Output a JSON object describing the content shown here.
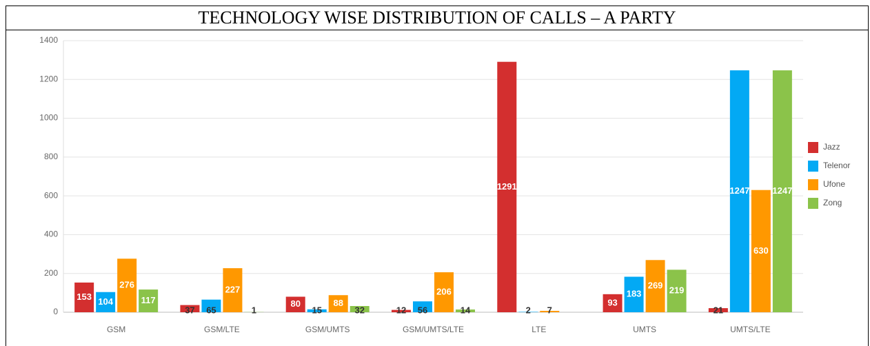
{
  "chart_data": {
    "type": "bar",
    "title": "TECHNOLOGY WISE DISTRIBUTION OF CALLS – A PARTY",
    "categories": [
      "GSM",
      "GSM/LTE",
      "GSM/UMTS",
      "GSM/UMTS/LTE",
      "LTE",
      "UMTS",
      "UMTS/LTE"
    ],
    "series": [
      {
        "name": "Jazz",
        "color": "#d32f2f",
        "values": [
          153,
          37,
          80,
          12,
          1291,
          93,
          21
        ]
      },
      {
        "name": "Telenor",
        "color": "#03a9f4",
        "values": [
          104,
          65,
          15,
          56,
          2,
          183,
          1247
        ]
      },
      {
        "name": "Ufone",
        "color": "#ff9800",
        "values": [
          276,
          227,
          88,
          206,
          7,
          269,
          630
        ]
      },
      {
        "name": "Zong",
        "color": "#8bc34a",
        "values": [
          117,
          1,
          32,
          14,
          null,
          219,
          1247
        ]
      }
    ],
    "ylim": [
      0,
      1400
    ],
    "yticks": [
      0,
      200,
      400,
      600,
      800,
      1000,
      1200,
      1400
    ],
    "grid": true,
    "legend": "right"
  }
}
